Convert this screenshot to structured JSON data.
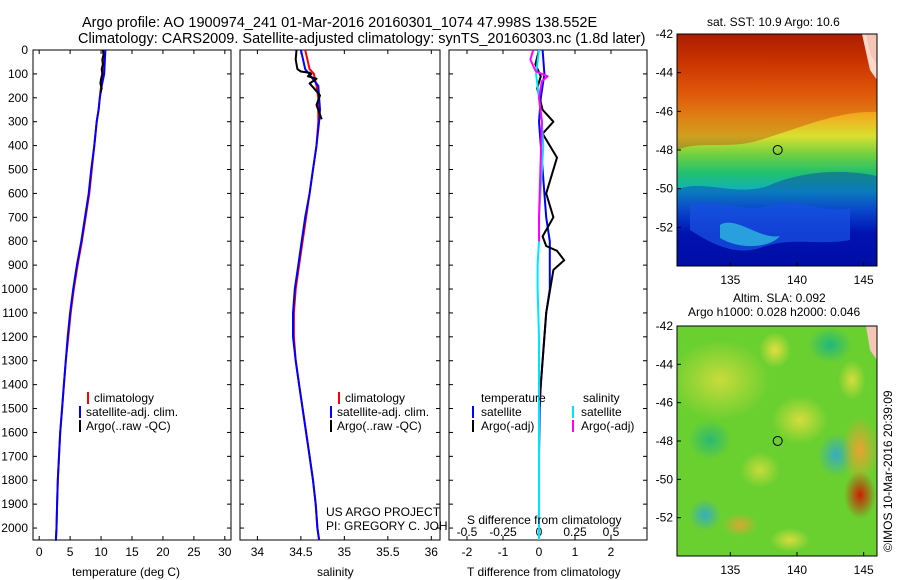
{
  "header": {
    "title_line1": "Argo profile: AO 1900974_241 01-Mar-2016 20160301_1074 47.998S 138.552E",
    "title_line2": "Climatology: CARS2009. Satellite-adjusted climatology: synTS_20160303.nc (1.8d later)"
  },
  "colors": {
    "climatology": "#ff0000",
    "satellite": "#0000ff",
    "argo": "#000000",
    "salinity_satellite": "#00e5ff",
    "salinity_argo": "#ff00ff"
  },
  "chart_data": [
    {
      "id": "temperature-profile",
      "type": "line",
      "xlabel": "temperature (deg C)",
      "ylabel": "",
      "xlim": [
        -1,
        31
      ],
      "ylim": [
        2050,
        0
      ],
      "xticks": [
        0,
        5,
        10,
        15,
        20,
        25,
        30
      ],
      "yticks": [
        0,
        100,
        200,
        300,
        400,
        500,
        600,
        700,
        800,
        900,
        1000,
        1100,
        1200,
        1300,
        1400,
        1500,
        1600,
        1700,
        1800,
        1900,
        2000
      ],
      "legend": [
        "climatology",
        "satellite-adj. clim.",
        "Argo(..raw -QC)"
      ],
      "legend_position": "bottom-right",
      "series": [
        {
          "name": "climatology",
          "color": "#ff0000",
          "x": [
            10.5,
            10.3,
            10.0,
            9.8,
            9.6,
            9.3,
            8.9,
            8.5,
            8.1,
            7.5,
            6.9,
            6.2,
            5.6,
            5.1,
            4.7,
            4.3,
            4.0,
            3.7,
            3.4,
            3.2,
            3.0,
            2.9,
            2.8,
            2.7,
            2.6
          ],
          "y": [
            0,
            100,
            150,
            200,
            250,
            300,
            400,
            500,
            600,
            700,
            800,
            900,
            1000,
            1100,
            1200,
            1300,
            1400,
            1500,
            1600,
            1700,
            1800,
            1900,
            2000,
            2050,
            2060
          ]
        },
        {
          "name": "satellite-adj. clim.",
          "color": "#0000ff",
          "x": [
            10.7,
            10.5,
            10.1,
            9.8,
            9.6,
            9.3,
            8.9,
            8.4,
            8.0,
            7.4,
            6.8,
            6.1,
            5.5,
            5.0,
            4.6,
            4.3,
            4.0,
            3.7,
            3.4,
            3.2,
            3.0,
            2.9,
            2.8,
            2.7,
            2.6
          ],
          "y": [
            0,
            100,
            150,
            200,
            250,
            300,
            400,
            500,
            600,
            700,
            800,
            900,
            1000,
            1100,
            1200,
            1300,
            1400,
            1500,
            1600,
            1700,
            1800,
            1900,
            2000,
            2050,
            2060
          ]
        },
        {
          "name": "Argo(..raw -QC)",
          "color": "#000000",
          "x": [
            10.3,
            10.4,
            10.2,
            10.3,
            10.1,
            10.2,
            10.0,
            9.9,
            10.1,
            9.9
          ],
          "y": [
            0,
            20,
            40,
            60,
            80,
            100,
            120,
            140,
            160,
            180
          ]
        }
      ]
    },
    {
      "id": "salinity-profile",
      "type": "line",
      "xlabel": "salinity",
      "ylabel": "",
      "xlim": [
        33.8,
        36.1
      ],
      "ylim": [
        2050,
        0
      ],
      "xticks": [
        34,
        34.5,
        35,
        35.5,
        36
      ],
      "xtick_labels": [
        "34",
        "34.5",
        "35",
        "35.5",
        "36"
      ],
      "legend": [
        "climatology",
        "satellite-adj. clim.",
        "Argo(..raw -QC)"
      ],
      "legend_position": "bottom-right",
      "annotations": [
        "US ARGO PROJECT",
        "PI: GREGORY C. JOHNSON"
      ],
      "series": [
        {
          "name": "climatology",
          "color": "#ff0000",
          "x": [
            34.55,
            34.6,
            34.65,
            34.68,
            34.7,
            34.7,
            34.68,
            34.64,
            34.6,
            34.56,
            34.52,
            34.48,
            34.44,
            34.42,
            34.42,
            34.44,
            34.48,
            34.52,
            34.56,
            34.6,
            34.64,
            34.67,
            34.69,
            34.71
          ],
          "y": [
            0,
            80,
            100,
            150,
            200,
            300,
            400,
            500,
            600,
            700,
            800,
            900,
            1000,
            1100,
            1200,
            1300,
            1400,
            1500,
            1600,
            1700,
            1800,
            1900,
            2000,
            2060
          ]
        },
        {
          "name": "satellite-adj. clim.",
          "color": "#0000ff",
          "x": [
            34.5,
            34.55,
            34.7,
            34.72,
            34.71,
            34.68,
            34.64,
            34.6,
            34.55,
            34.51,
            34.47,
            34.43,
            34.41,
            34.41,
            34.44,
            34.48,
            34.52,
            34.56,
            34.6,
            34.64,
            34.67,
            34.69,
            34.71
          ],
          "y": [
            0,
            80,
            150,
            250,
            300,
            400,
            500,
            600,
            700,
            800,
            900,
            1000,
            1100,
            1200,
            1300,
            1400,
            1500,
            1600,
            1700,
            1800,
            1900,
            2000,
            2060
          ]
        },
        {
          "name": "Argo(..raw -QC)",
          "color": "#000000",
          "x": [
            34.45,
            34.44,
            34.46,
            34.5,
            34.6,
            34.62,
            34.58,
            34.68,
            34.6,
            34.65,
            34.72,
            34.68,
            34.74
          ],
          "y": [
            0,
            40,
            80,
            90,
            95,
            100,
            110,
            120,
            140,
            160,
            190,
            230,
            290
          ]
        }
      ]
    },
    {
      "id": "difference-profile",
      "type": "line",
      "xlabel": "T difference from climatology",
      "x2label": "S difference from climatology",
      "ylabel": "",
      "xlim": [
        -2.5,
        3.0
      ],
      "x2lim": [
        -0.625,
        0.75
      ],
      "ylim": [
        2050,
        0
      ],
      "xticks": [
        -2,
        -1,
        0,
        1,
        2
      ],
      "x2ticks": [
        -0.5,
        -0.25,
        0,
        0.25,
        0.5
      ],
      "x2tick_labels": [
        "-0.5",
        "-0.25",
        "0",
        "0.25",
        "0.5"
      ],
      "legend": [
        "temperature",
        "satellite",
        "Argo(-adj)",
        "salinity",
        "satellite",
        "Argo(-adj)"
      ],
      "legend_position": "bottom-center",
      "series": [
        {
          "name": "satellite",
          "group": "temperature",
          "color": "#0000ff",
          "x": [
            0.1,
            0.15,
            0.05,
            0.0,
            0.05,
            0.1,
            0.15,
            0.2,
            0.3,
            0.3,
            0.3,
            0.2,
            0.15,
            0.1,
            0.05,
            0.02,
            0.01,
            0.0,
            0.0,
            0.0,
            0.0
          ],
          "y": [
            0,
            100,
            200,
            300,
            400,
            500,
            600,
            700,
            800,
            900,
            1000,
            1100,
            1200,
            1300,
            1400,
            1500,
            1600,
            1700,
            1800,
            1900,
            2050
          ]
        },
        {
          "name": "Argo(-adj)",
          "group": "temperature",
          "color": "#000000",
          "x": [
            0.0,
            -0.1,
            0.05,
            -0.05,
            0.1,
            0.4,
            0.1,
            0.5,
            0.2,
            0.4,
            0.1,
            0.2,
            0.5,
            0.7,
            0.4,
            0.2,
            0.1,
            0.0
          ],
          "y": [
            0,
            60,
            110,
            160,
            250,
            300,
            350,
            450,
            600,
            700,
            780,
            820,
            840,
            880,
            920,
            1100,
            1300,
            1500
          ]
        },
        {
          "name": "satellite",
          "group": "salinity",
          "color": "#00e5ff",
          "x": [
            0.0,
            -0.02,
            0.0,
            0.02,
            0.03,
            0.02,
            0.01,
            0.0,
            0.0,
            -0.01,
            -0.01,
            0.0,
            0.0,
            0.0,
            0.0,
            0.0,
            0.0
          ],
          "y": [
            0,
            100,
            200,
            300,
            400,
            500,
            600,
            700,
            800,
            900,
            1000,
            1200,
            1400,
            1600,
            1800,
            1900,
            2050
          ]
        },
        {
          "name": "Argo(-adj)",
          "group": "salinity",
          "color": "#ff00ff",
          "x": [
            -0.04,
            -0.06,
            -0.03,
            -0.02,
            0.0,
            0.02,
            0.06,
            0.02,
            0.0,
            0.02,
            0.01,
            0.0,
            0.0
          ],
          "y": [
            0,
            40,
            80,
            90,
            95,
            100,
            110,
            130,
            200,
            300,
            500,
            700,
            800
          ]
        }
      ]
    },
    {
      "id": "sst-map",
      "type": "heatmap",
      "title": "sat. SST: 10.9 Argo: 10.6",
      "xlim": [
        131,
        146
      ],
      "ylim": [
        -54,
        -42
      ],
      "xticks": [
        135,
        140,
        145
      ],
      "yticks": [
        -42,
        -44,
        -46,
        -48,
        -50,
        -52
      ],
      "marker": {
        "lon": 138.552,
        "lat": -47.998
      }
    },
    {
      "id": "sla-map",
      "type": "heatmap",
      "title_line1": "Altim. SLA: 0.092",
      "title_line2": "Argo h1000: 0.028 h2000: 0.046",
      "xlim": [
        131,
        146
      ],
      "ylim": [
        -54,
        -42
      ],
      "xticks": [
        135,
        140,
        145
      ],
      "yticks": [
        -42,
        -44,
        -46,
        -48,
        -50,
        -52
      ],
      "marker": {
        "lon": 138.552,
        "lat": -47.998
      }
    }
  ],
  "footer": {
    "credit": "©IMOS 10-Mar-2016 20:39:09"
  }
}
